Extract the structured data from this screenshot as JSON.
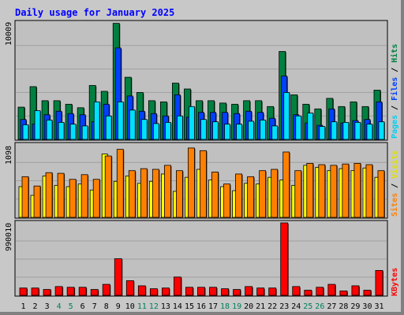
{
  "chart_data": [
    {
      "type": "bar",
      "title": "Daily usage for January 2025",
      "ymax_label": "10009",
      "ylabel_parts": [
        "Pages",
        "Files",
        "Hits"
      ],
      "categories": [
        "1",
        "2",
        "3",
        "4",
        "5",
        "6",
        "7",
        "8",
        "9",
        "10",
        "11",
        "12",
        "13",
        "14",
        "15",
        "16",
        "17",
        "18",
        "19",
        "20",
        "21",
        "22",
        "23",
        "24",
        "25",
        "26",
        "27",
        "28",
        "29",
        "30",
        "31"
      ],
      "weekend_days": [
        "4",
        "5",
        "11",
        "12",
        "18",
        "19",
        "25",
        "26"
      ],
      "ylim": [
        0,
        10009
      ],
      "series": [
        {
          "name": "Hits",
          "values": [
            2750,
            4500,
            3300,
            3300,
            3000,
            2700,
            4600,
            4100,
            9900,
            5300,
            4000,
            3300,
            3200,
            4800,
            4300,
            3300,
            3300,
            3100,
            3000,
            3300,
            3300,
            2800,
            7500,
            3800,
            3000,
            2600,
            3500,
            2800,
            3200,
            2800,
            4200
          ]
        },
        {
          "name": "Files",
          "values": [
            1700,
            1300,
            2100,
            2400,
            2200,
            2100,
            1500,
            3000,
            7800,
            3700,
            2400,
            2200,
            2000,
            3800,
            1900,
            2300,
            2300,
            2300,
            2200,
            2400,
            2300,
            1800,
            5400,
            2100,
            1400,
            1200,
            2600,
            1400,
            1600,
            1700,
            3200
          ]
        },
        {
          "name": "Pages",
          "values": [
            1250,
            2450,
            1650,
            1450,
            1300,
            1150,
            3200,
            2000,
            3200,
            2500,
            1700,
            1350,
            1450,
            2000,
            2800,
            1700,
            1500,
            1300,
            1300,
            1550,
            1650,
            1150,
            4000,
            2000,
            2250,
            1100,
            1500,
            1450,
            1450,
            1300,
            1500
          ]
        }
      ]
    },
    {
      "type": "bar",
      "ymax_label": "1098",
      "ylabel_parts": [
        "Sites",
        "Visits"
      ],
      "ylim": [
        0,
        1098
      ],
      "series": [
        {
          "name": "Visits",
          "values": [
            460,
            330,
            620,
            480,
            460,
            500,
            410,
            950,
            540,
            620,
            510,
            540,
            650,
            390,
            600,
            720,
            560,
            460,
            400,
            510,
            500,
            600,
            560,
            480,
            780,
            750,
            700,
            730,
            700,
            740,
            600
          ]
        },
        {
          "name": "Sites",
          "values": [
            610,
            470,
            670,
            660,
            570,
            640,
            570,
            920,
            1020,
            700,
            730,
            720,
            780,
            700,
            1040,
            1000,
            680,
            500,
            650,
            610,
            700,
            720,
            980,
            700,
            810,
            790,
            780,
            800,
            810,
            790,
            700
          ]
        }
      ]
    },
    {
      "type": "bar",
      "ymax_label": "990010",
      "ylabel_parts": [
        "KBytes"
      ],
      "ylim": [
        0,
        990010
      ],
      "series": [
        {
          "name": "KBytes",
          "values": [
            100000,
            100000,
            80000,
            120000,
            110000,
            110000,
            80000,
            150000,
            500000,
            200000,
            130000,
            90000,
            100000,
            250000,
            110000,
            110000,
            110000,
            90000,
            80000,
            120000,
            100000,
            100000,
            990000,
            120000,
            70000,
            110000,
            150000,
            60000,
            130000,
            70000,
            340000
          ]
        }
      ]
    }
  ],
  "colors": {
    "hits": "#008040",
    "files": "#0040ff",
    "pages": "#00e0ff",
    "visits": "#ffff00",
    "sites": "#ff8000",
    "kbytes": "#ff0000",
    "title": "#0000ff",
    "axis_text": "#000000",
    "weekend_text": "#00805c",
    "panel_bg": "#c0c0c0"
  }
}
